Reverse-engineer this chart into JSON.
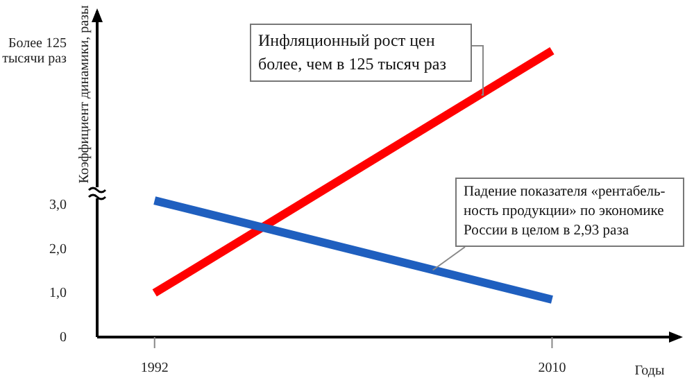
{
  "chart_data": {
    "type": "line",
    "ylabel": "Коэффициент динамики, разы",
    "xlabel": "Годы",
    "x": [
      1992,
      2010
    ],
    "series": [
      {
        "color": "#ff0000",
        "values": [
          1.0,
          6.5
        ]
      },
      {
        "color": "#1f5fbf",
        "values": [
          3.1,
          0.85
        ]
      }
    ],
    "xlim": [
      1989.4,
      2015.8
    ],
    "xticks": [
      1992,
      2010
    ],
    "ylim": [
      0,
      7.4
    ],
    "yticks": [
      0,
      {
        "value": 1,
        "label": "1,0"
      },
      {
        "value": 2,
        "label": "2,0"
      },
      {
        "value": 3,
        "label": "3,0"
      },
      {
        "value": 6.5,
        "label": "Более 125 тысячи раз"
      }
    ],
    "annotations": [
      {
        "text": "Инфляционный рост цен более, чем в 125 тысяч раз",
        "x": 2006.8,
        "y": 5.5
      },
      {
        "text": "Падение показателя «рентабель-ность продукции» по экономике России в целом в 2,93 раза",
        "x": 2004.6,
        "y": 1.52
      }
    ],
    "grid": false,
    "legend": false,
    "marker": "none",
    "line_style": "solid"
  }
}
